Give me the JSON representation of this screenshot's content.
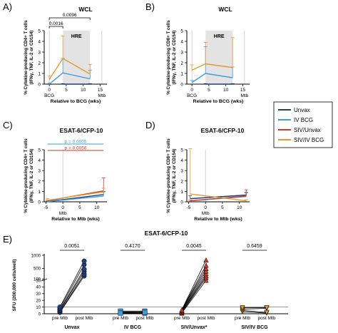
{
  "colors": {
    "unvax": "#1f3f7a",
    "ivbcg": "#3a9de0",
    "siv_unvax": "#cc3a2a",
    "siv_ivbcg": "#e39a2a",
    "shade": "#e3e3e3"
  },
  "legend": {
    "items": [
      "Unvax",
      "IV BCG",
      "SIV/Unvax",
      "SIV/IV BCG"
    ]
  },
  "chart_data": [
    {
      "panel": "A)",
      "type": "line",
      "title": "WCL",
      "ylabel": "% Cytokine-producing CD4+ T cells (IFNγ, TNF, IL-2 or CD154)",
      "xlabel": "Relative to BCG (wks)",
      "ylim": [
        0,
        5
      ],
      "yticks": [
        "0",
        "1",
        "2",
        "3",
        "4",
        "5"
      ],
      "xlim": [
        -1.5,
        17
      ],
      "xticks": [
        "0",
        "5",
        "10",
        "15"
      ],
      "x_markers": [
        {
          "label": "BCG",
          "x": 0
        },
        {
          "label": "Mtb",
          "x": 15.5
        }
      ],
      "shaded": {
        "label": "HRE",
        "x0": 4,
        "x1": 12
      },
      "brackets": [
        {
          "label": "0.0096",
          "x0": 0,
          "x1": 12
        },
        {
          "label": "0.0016",
          "x0": 0,
          "x1": 4
        }
      ],
      "series": [
        {
          "key": "unvax",
          "x": [
            4,
            12
          ],
          "y": [
            0.0,
            0.0
          ],
          "err": [
            0.05,
            0.05
          ]
        },
        {
          "key": "ivbcg",
          "x": [
            0,
            4,
            12
          ],
          "y": [
            0.0,
            1.05,
            0.5
          ],
          "err": [
            0.1,
            1.35,
            0.8
          ]
        },
        {
          "key": "siv_ivbcg",
          "x": [
            0,
            4,
            12
          ],
          "y": [
            0.45,
            2.4,
            0.95
          ],
          "err": [
            0.3,
            2.1,
            0.9
          ]
        }
      ]
    },
    {
      "panel": "B)",
      "type": "line",
      "title": "WCL",
      "ylabel": "% Cytokine-producing CD8+ T cells (IFNγ, TNF, IL-2 or CD154)",
      "xlabel": "Relative to BCG (wks)",
      "ylim": [
        0,
        5
      ],
      "yticks": [
        "0",
        "1",
        "2",
        "3",
        "4",
        "5"
      ],
      "xlim": [
        -1.5,
        17
      ],
      "xticks": [
        "0",
        "5",
        "10",
        "15"
      ],
      "x_markers": [
        {
          "label": "BCG",
          "x": 0
        },
        {
          "label": "Mtb",
          "x": 15.5
        }
      ],
      "shaded": {
        "label": "HRE",
        "x0": 4,
        "x1": 12
      },
      "brackets": [],
      "series": [
        {
          "key": "unvax",
          "x": [
            4,
            12
          ],
          "y": [
            0.0,
            0.0
          ],
          "err": [
            0.05,
            0.05
          ]
        },
        {
          "key": "ivbcg",
          "x": [
            0,
            4,
            12
          ],
          "y": [
            0.15,
            1.0,
            0.6
          ],
          "err": [
            0.2,
            2.5,
            1.0
          ]
        },
        {
          "key": "siv_ivbcg",
          "x": [
            0,
            4,
            12
          ],
          "y": [
            1.3,
            1.9,
            1.55
          ],
          "err": [
            0.5,
            2.0,
            2.8
          ]
        }
      ]
    },
    {
      "panel": "C)",
      "type": "line",
      "title": "ESAT-6/CFP-10",
      "ylabel": "% Cytokine-producing CD4+ T cells (IFNγ, TNF, IL-2 or CD154)",
      "xlabel": "Relative to Mtb (wks)",
      "ylim": [
        0,
        5
      ],
      "yticks": [
        "0",
        "1",
        "2",
        "3",
        "4",
        "5"
      ],
      "xlim": [
        -5.5,
        13
      ],
      "xticks": [
        "-5",
        "0",
        "5",
        "10"
      ],
      "x_markers": [
        {
          "label": "Mtb",
          "x": 0
        }
      ],
      "shaded": null,
      "pvalues": [
        {
          "label": "p = 0.0005",
          "key": "ivbcg"
        },
        {
          "label": "p = 0.0056",
          "key": "siv_unvax"
        }
      ],
      "series": [
        {
          "key": "unvax",
          "x": [
            -4.5,
            12
          ],
          "y": [
            0.03,
            0.7
          ],
          "err": [
            0.03,
            0.3
          ]
        },
        {
          "key": "ivbcg",
          "x": [
            -4.5,
            12
          ],
          "y": [
            0.02,
            0.55
          ],
          "err": [
            0.03,
            0.4
          ]
        },
        {
          "key": "siv_unvax",
          "x": [
            -4.5,
            12
          ],
          "y": [
            0.1,
            1.05
          ],
          "err": [
            0.05,
            1.25
          ]
        },
        {
          "key": "siv_ivbcg",
          "x": [
            -4.5,
            12
          ],
          "y": [
            0.15,
            0.95
          ],
          "err": [
            0.15,
            0.35
          ]
        }
      ]
    },
    {
      "panel": "D)",
      "type": "line",
      "title": "ESAT-6/CFP-10",
      "ylabel": "% Cytokine-producing CD8+ T cells (IFNγ, TNF, IL-2 or CD154)",
      "xlabel": "Relative to Mtb (wks)",
      "ylim": [
        0,
        5
      ],
      "yticks": [
        "0",
        "1",
        "2",
        "3",
        "4",
        "5"
      ],
      "xlim": [
        -5.5,
        13
      ],
      "xticks": [
        "-5",
        "0",
        "5",
        "10"
      ],
      "x_markers": [
        {
          "label": "Mtb",
          "x": 0
        }
      ],
      "shaded": null,
      "series": [
        {
          "key": "unvax",
          "x": [
            -4.5,
            12
          ],
          "y": [
            0.3,
            0.65
          ],
          "err": [
            0.3,
            0.25
          ]
        },
        {
          "key": "ivbcg",
          "x": [
            -4.5,
            12
          ],
          "y": [
            0.1,
            0.5
          ],
          "err": [
            0.05,
            0.35
          ]
        },
        {
          "key": "siv_unvax",
          "x": [
            -4.5,
            12
          ],
          "y": [
            0.1,
            0.55
          ],
          "err": [
            0.05,
            0.6
          ]
        },
        {
          "key": "siv_ivbcg",
          "x": [
            -4.5,
            12
          ],
          "y": [
            0.75,
            0.1
          ],
          "err": [
            4.35,
            0.1
          ]
        }
      ]
    },
    {
      "panel": "E)",
      "type": "scatter",
      "title": "ESAT-6/CFP-10",
      "ylabel": "SFU (200,000 cells/well)",
      "yticks": [
        "0",
        "10",
        "20",
        "30",
        "40",
        "50",
        "100",
        "500",
        "1000"
      ],
      "ytick_values": [
        0,
        10,
        20,
        30,
        40,
        50,
        100,
        500,
        1000
      ],
      "groups": [
        {
          "name": "Unvax",
          "key": "unvax",
          "marker": "circle",
          "p": "0.0051",
          "pre": [
            2,
            3,
            5,
            6,
            8,
            10
          ],
          "post": [
            210,
            280,
            380,
            470,
            640,
            780
          ]
        },
        {
          "name": "IV BCG",
          "key": "ivbcg",
          "marker": "square",
          "p": "0.4170",
          "pre": [
            1,
            2,
            3,
            4,
            1
          ],
          "post": [
            1,
            2,
            3,
            4,
            2
          ]
        },
        {
          "name": "SIV/Unvax*",
          "key": "siv_unvax",
          "marker": "triangle",
          "p": "0.0045",
          "pre": [
            1,
            2,
            3,
            4,
            5,
            6
          ],
          "post": [
            50,
            150,
            220,
            300,
            400,
            500,
            620,
            820
          ]
        },
        {
          "name": "SIV/IV BCG",
          "key": "siv_ivbcg",
          "marker": "triangle-down",
          "p": "0.6459",
          "pre": [
            3,
            5,
            7,
            9
          ],
          "post": [
            1,
            2,
            8,
            9
          ]
        }
      ],
      "threshold": 10,
      "xtick_labels": [
        "pre Mtb",
        "post Mtb"
      ]
    }
  ]
}
